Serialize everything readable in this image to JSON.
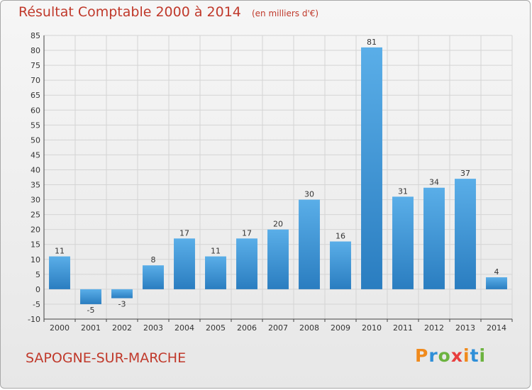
{
  "header": {
    "title": "Résultat Comptable 2000 à 2014",
    "subtitle": "(en milliers d'€)"
  },
  "footer": {
    "location": "SAPOGNE-SUR-MARCHE",
    "brand": "Proxiti"
  },
  "colors": {
    "bar_light": "#5aaee8",
    "bar_dark": "#2a7dc0",
    "title": "#c0392b",
    "grid": "#d4d4d4"
  },
  "chart_data": {
    "type": "bar",
    "title": "Résultat Comptable 2000 à 2014",
    "subtitle": "(en milliers d'€)",
    "categories": [
      "2000",
      "2001",
      "2002",
      "2003",
      "2004",
      "2005",
      "2006",
      "2007",
      "2008",
      "2009",
      "2010",
      "2011",
      "2012",
      "2013",
      "2014"
    ],
    "values": [
      11,
      -5,
      -3,
      8,
      17,
      11,
      17,
      20,
      30,
      16,
      81,
      31,
      34,
      37,
      4
    ],
    "ylim": [
      -10,
      85
    ],
    "yticks": [
      -10,
      -5,
      0,
      5,
      10,
      15,
      20,
      25,
      30,
      35,
      40,
      45,
      50,
      55,
      60,
      65,
      70,
      75,
      80,
      85
    ],
    "grid": true,
    "data_labels": true
  }
}
